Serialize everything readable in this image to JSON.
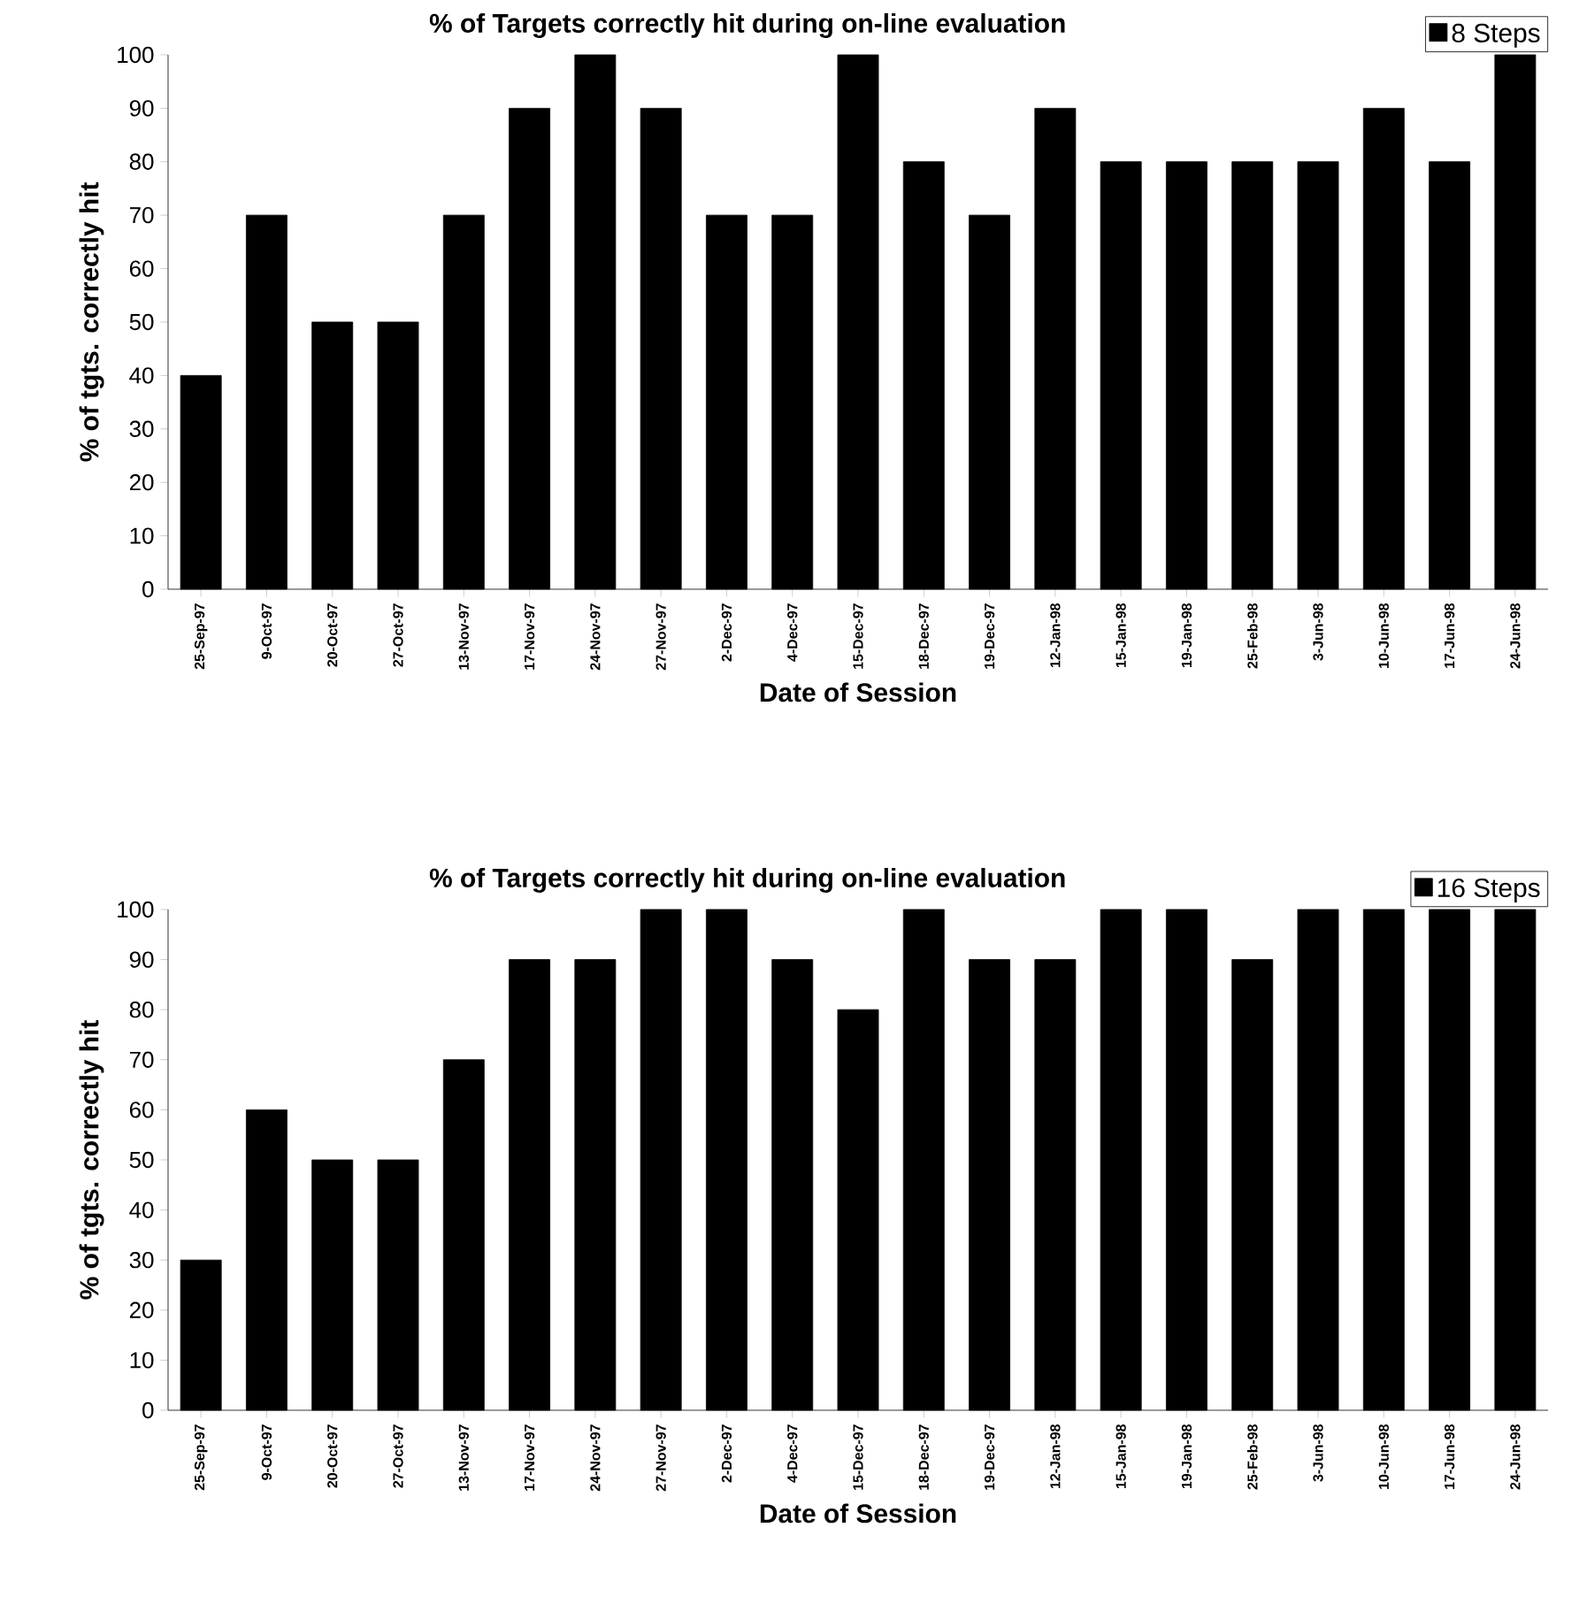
{
  "chart_data": [
    {
      "type": "bar",
      "title": "% of Targets correctly hit during on-line evaluation",
      "xlabel": "Date of Session",
      "ylabel": "% of tgts. correctly hit",
      "categories": [
        "25-Sep-97",
        "9-Oct-97",
        "20-Oct-97",
        "27-Oct-97",
        "13-Nov-97",
        "17-Nov-97",
        "24-Nov-97",
        "27-Nov-97",
        "2-Dec-97",
        "4-Dec-97",
        "15-Dec-97",
        "18-Dec-97",
        "19-Dec-97",
        "12-Jan-98",
        "15-Jan-98",
        "19-Jan-98",
        "25-Feb-98",
        "3-Jun-98",
        "10-Jun-98",
        "17-Jun-98",
        "24-Jun-98"
      ],
      "series": [
        {
          "name": "8 Steps",
          "color": "#000000",
          "values": [
            40,
            70,
            50,
            50,
            70,
            90,
            100,
            90,
            70,
            70,
            100,
            80,
            70,
            90,
            80,
            80,
            80,
            80,
            90,
            80,
            100
          ]
        }
      ],
      "ylim": [
        0,
        100
      ],
      "yticks": [
        0,
        10,
        20,
        30,
        40,
        50,
        60,
        70,
        80,
        90,
        100
      ],
      "grid": false,
      "legend": "top right"
    },
    {
      "type": "bar",
      "title": "% of Targets correctly hit during on-line evaluation",
      "xlabel": "Date of Session",
      "ylabel": "% of tgts. correctly hit",
      "categories": [
        "25-Sep-97",
        "9-Oct-97",
        "20-Oct-97",
        "27-Oct-97",
        "13-Nov-97",
        "17-Nov-97",
        "24-Nov-97",
        "27-Nov-97",
        "2-Dec-97",
        "4-Dec-97",
        "15-Dec-97",
        "18-Dec-97",
        "19-Dec-97",
        "12-Jan-98",
        "15-Jan-98",
        "19-Jan-98",
        "25-Feb-98",
        "3-Jun-98",
        "10-Jun-98",
        "17-Jun-98",
        "24-Jun-98"
      ],
      "series": [
        {
          "name": "16 Steps",
          "color": "#000000",
          "values": [
            30,
            60,
            50,
            50,
            70,
            90,
            90,
            100,
            100,
            90,
            80,
            100,
            90,
            90,
            100,
            100,
            90,
            100,
            100,
            100,
            100
          ]
        }
      ],
      "ylim": [
        0,
        100
      ],
      "yticks": [
        0,
        10,
        20,
        30,
        40,
        50,
        60,
        70,
        80,
        90,
        100
      ],
      "grid": false,
      "legend": "top right"
    }
  ]
}
